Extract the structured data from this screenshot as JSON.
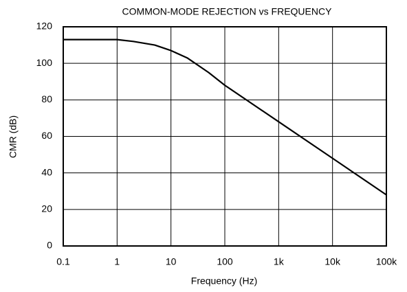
{
  "chart_data": {
    "type": "line",
    "title": "COMMON-MODE REJECTION vs FREQUENCY",
    "x_label": "Frequency (Hz)",
    "y_label": "CMR (dB)",
    "x": [
      0.1,
      1,
      2,
      5,
      10,
      20,
      50,
      100,
      1000,
      10000,
      100000
    ],
    "series": [
      {
        "name": "CMR",
        "color": "#000000",
        "values": [
          113,
          113,
          112,
          110,
          107,
          103,
          95,
          88,
          68,
          48,
          28
        ]
      }
    ],
    "xscale": "log",
    "xlim": [
      0.1,
      100000
    ],
    "xticks": [
      0.1,
      1,
      10,
      100,
      {
        "value": 1000,
        "label": "1k"
      },
      {
        "value": 10000,
        "label": "10k"
      },
      {
        "value": 100000,
        "label": "100k"
      }
    ],
    "ylim": [
      0,
      120
    ],
    "yticks": [
      0,
      20,
      40,
      60,
      80,
      100,
      120
    ],
    "grid": true
  }
}
